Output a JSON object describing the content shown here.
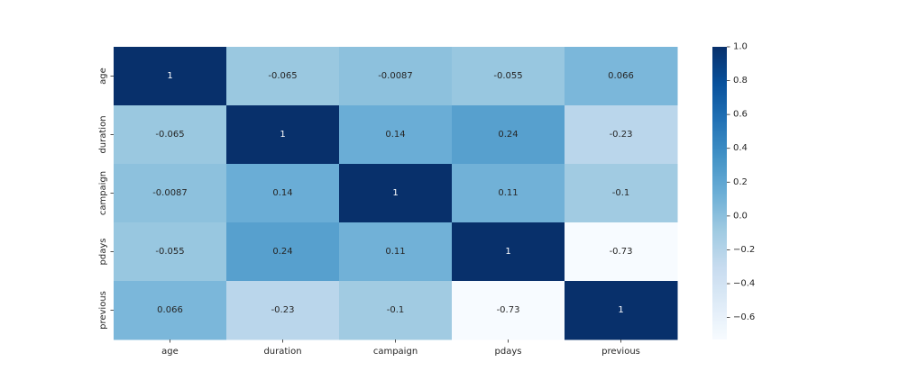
{
  "chart_data": {
    "type": "heatmap",
    "title": "",
    "xlabel": "",
    "ylabel": "",
    "x_labels": [
      "age",
      "duration",
      "campaign",
      "pdays",
      "previous"
    ],
    "y_labels": [
      "age",
      "duration",
      "campaign",
      "pdays",
      "previous"
    ],
    "values": [
      [
        1,
        -0.065,
        -0.0087,
        -0.055,
        0.066
      ],
      [
        -0.065,
        1,
        0.14,
        0.24,
        -0.23
      ],
      [
        -0.0087,
        0.14,
        1,
        0.11,
        -0.1
      ],
      [
        -0.055,
        0.24,
        0.11,
        1,
        -0.73
      ],
      [
        0.066,
        -0.23,
        -0.1,
        -0.73,
        1
      ]
    ],
    "annotations": [
      [
        "1",
        "-0.065",
        "-0.0087",
        "-0.055",
        "0.066"
      ],
      [
        "-0.065",
        "1",
        "0.14",
        "0.24",
        "-0.23"
      ],
      [
        "-0.0087",
        "0.14",
        "1",
        "0.11",
        "-0.1"
      ],
      [
        "-0.055",
        "0.24",
        "0.11",
        "1",
        "-0.73"
      ],
      [
        "0.066",
        "-0.23",
        "-0.1",
        "-0.73",
        "1"
      ]
    ],
    "colormap": "Blues",
    "vmin": -0.73,
    "vmax": 1.0,
    "colorbar_ticks": [
      1.0,
      0.8,
      0.6,
      0.4,
      0.2,
      0.0,
      -0.2,
      -0.4,
      -0.6
    ],
    "colorbar_tick_labels": [
      "1.0",
      "0.8",
      "0.6",
      "0.4",
      "0.2",
      "0.0",
      "−0.2",
      "−0.4",
      "−0.6"
    ],
    "grid": false,
    "legend": "colorbar-right"
  }
}
